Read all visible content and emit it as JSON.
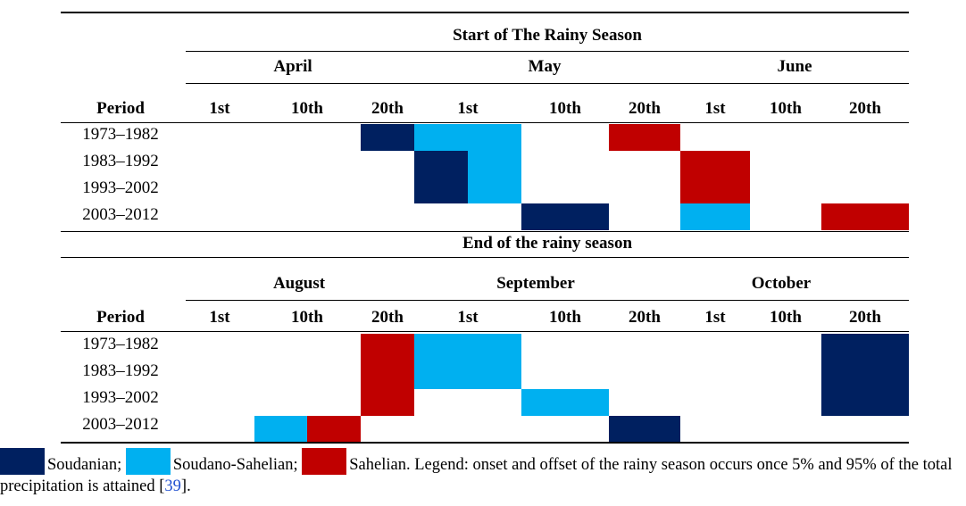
{
  "start_table": {
    "title": "Start of The Rainy Season",
    "months": [
      "April",
      "May",
      "June"
    ],
    "columns": [
      "Period",
      "1st",
      "10th",
      "20th",
      "1st",
      "10th",
      "20th",
      "1st",
      "10th",
      "20th"
    ],
    "rows": [
      "1973–1982",
      "1983–1992",
      "1993–2002",
      "2003–2012"
    ]
  },
  "end_table": {
    "title": "End of the rainy season",
    "months": [
      "August",
      "September",
      "October"
    ],
    "columns": [
      "Period",
      "1st",
      "10th",
      "20th",
      "1st",
      "10th",
      "20th",
      "1st",
      "10th",
      "20th"
    ],
    "rows": [
      "1973–1982",
      "1983–1992",
      "1993–2002",
      "2003–2012"
    ]
  },
  "legend": {
    "items": [
      "Soudanian;",
      "Soudano-Sahelian;",
      "Sahelian."
    ],
    "note": "Legend: onset and offset of the rainy season occurs once 5% and 95% of the total precipitation is attained [",
    "ref": "39",
    "note_end": "]."
  }
}
